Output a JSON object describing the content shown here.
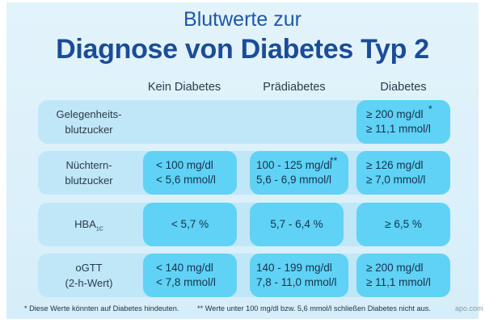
{
  "title": {
    "line1": "Blutwerte zur",
    "line2": "Diagnose von Diabetes Typ 2"
  },
  "columns": [
    "Kein Diabetes",
    "Prädiabetes",
    "Diabetes"
  ],
  "rows": [
    {
      "label_lines": [
        "Gelegenheits-",
        "blutzucker"
      ],
      "cells": [
        null,
        null,
        {
          "lines": [
            "≥ 200 mg/dl",
            "≥ 11,1 mmol/l"
          ],
          "marker": "*"
        }
      ]
    },
    {
      "label_lines": [
        "Nüchtern-",
        "blutzucker"
      ],
      "cells": [
        {
          "lines": [
            "< 100 mg/dl",
            "< 5,6 mmol/l"
          ]
        },
        {
          "lines": [
            "100 - 125 mg/dl",
            "5,6 - 6,9 mmol/l"
          ],
          "marker": "**"
        },
        {
          "lines": [
            "≥ 126 mg/dl",
            "≥ 7,0 mmol/l"
          ]
        }
      ]
    },
    {
      "label": "HBA",
      "label_sub": "1C",
      "cells": [
        {
          "lines": [
            "< 5,7 %"
          ]
        },
        {
          "lines": [
            "5,7 - 6,4 %"
          ]
        },
        {
          "lines": [
            "≥ 6,5 %"
          ]
        }
      ]
    },
    {
      "label_lines": [
        "oGTT",
        "(2-h-Wert)"
      ],
      "cells": [
        {
          "lines": [
            "< 140 mg/dl",
            "< 7,8 mmol/l"
          ]
        },
        {
          "lines": [
            "140 - 199 mg/dl",
            "7,8 - 11,0 mmol/l"
          ]
        },
        {
          "lines": [
            "≥ 200 mg/dl",
            "≥ 11,1 mmol/l"
          ]
        }
      ]
    }
  ],
  "footnotes": {
    "single": "*  Diese Werte könnten auf Diabetes hindeuten.",
    "double": "**  Werte unter 100 mg/dl bzw. 5,6 mmol/l schließen Diabetes nicht aus."
  },
  "watermark": "apo.com",
  "colors": {
    "background": "#d6eef9",
    "row_band": "#bfe7f7",
    "cell": "#5fd2f6",
    "title": "#1a4c98"
  }
}
